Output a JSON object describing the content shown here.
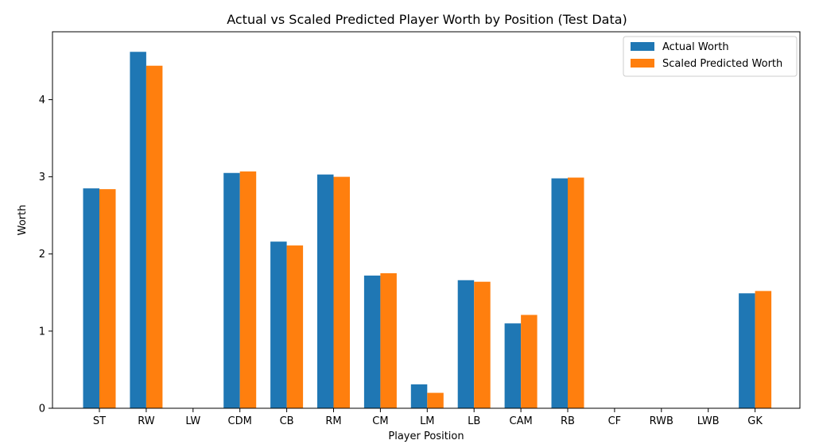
{
  "chart_data": {
    "type": "bar",
    "title": "Actual vs Scaled Predicted Player Worth by Position (Test Data)",
    "xlabel": "Player Position",
    "ylabel": "Worth",
    "categories": [
      "ST",
      "RW",
      "LW",
      "CDM",
      "CB",
      "RM",
      "CM",
      "LM",
      "LB",
      "CAM",
      "RB",
      "CF",
      "RWB",
      "LWB",
      "GK"
    ],
    "series": [
      {
        "name": "Actual Worth",
        "color": "#1f77b4",
        "values": [
          2.85,
          4.62,
          0,
          3.05,
          2.16,
          3.03,
          1.72,
          0.31,
          1.66,
          1.1,
          2.98,
          0,
          0,
          0,
          1.49
        ]
      },
      {
        "name": "Scaled Predicted Worth",
        "color": "#ff7f0e",
        "values": [
          2.84,
          4.44,
          0,
          3.07,
          2.11,
          3.0,
          1.75,
          0.2,
          1.64,
          1.21,
          2.99,
          0,
          0,
          0,
          1.52
        ]
      }
    ],
    "ylim": [
      0,
      4.88
    ],
    "yticks": [
      "0",
      "1",
      "2",
      "3",
      "4"
    ],
    "grid": false,
    "legend_position": "top-right"
  }
}
